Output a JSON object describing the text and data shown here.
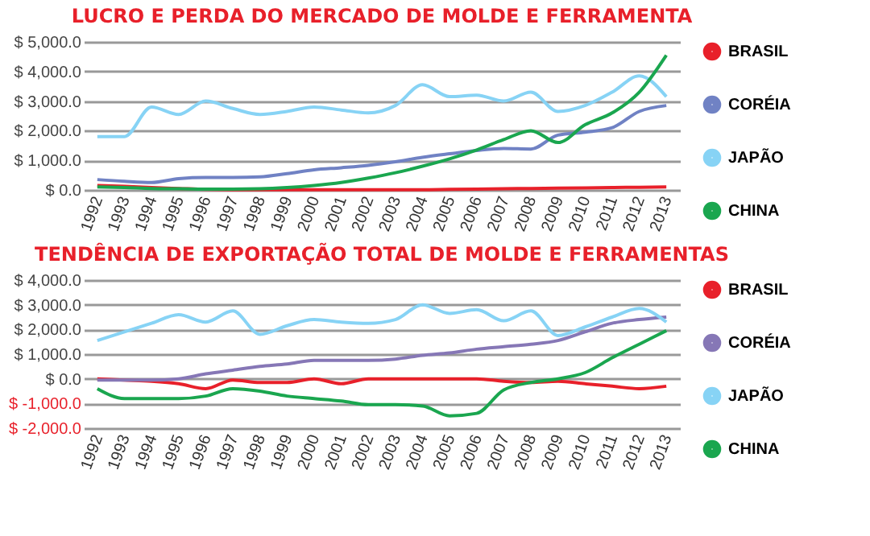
{
  "chart_data": [
    {
      "type": "line",
      "title": "LUCRO E PERDA DO MERCADO DE MOLDE E FERRAMENTA",
      "categories": [
        "1992",
        "1993",
        "1994",
        "1995",
        "1996",
        "1997",
        "1998",
        "1999",
        "2000",
        "2001",
        "2002",
        "2003",
        "2004",
        "2005",
        "2006",
        "2007",
        "2008",
        "2009",
        "2010",
        "2011",
        "2012",
        "2013"
      ],
      "series": [
        {
          "name": "BRASIL",
          "color": "#e8202a",
          "values": [
            150,
            120,
            80,
            50,
            20,
            10,
            10,
            10,
            10,
            10,
            10,
            10,
            10,
            20,
            30,
            40,
            50,
            60,
            70,
            80,
            90,
            100
          ]
        },
        {
          "name": "CORÉIA",
          "color": "#7082c4",
          "values": [
            350,
            290,
            250,
            380,
            420,
            420,
            440,
            550,
            680,
            750,
            830,
            950,
            1100,
            1220,
            1330,
            1400,
            1380,
            1850,
            1950,
            2100,
            2650,
            2850
          ]
        },
        {
          "name": "JAPÃO",
          "color": "#87d3f5",
          "values": [
            1800,
            1800,
            2800,
            2550,
            3000,
            2750,
            2550,
            2650,
            2800,
            2700,
            2600,
            2850,
            3550,
            3150,
            3200,
            3000,
            3300,
            2650,
            2850,
            3300,
            3850,
            3150
          ]
        },
        {
          "name": "CHINA",
          "color": "#1aa64f",
          "values": [
            100,
            80,
            50,
            40,
            30,
            30,
            40,
            80,
            150,
            250,
            400,
            580,
            800,
            1050,
            1350,
            1700,
            2000,
            1600,
            2200,
            2600,
            3300,
            4550
          ]
        }
      ],
      "ylim": [
        0,
        5000
      ],
      "yticks": [
        {
          "value": 0,
          "label": "$ 0.0"
        },
        {
          "value": 1000,
          "label": "$ 1,000.0"
        },
        {
          "value": 2000,
          "label": "$ 2,000.0"
        },
        {
          "value": 3000,
          "label": "$ 3,000.0"
        },
        {
          "value": 4000,
          "label": "$ 4,000.0"
        },
        {
          "value": 5000,
          "label": "$ 5,000.0"
        }
      ],
      "grid": "y",
      "legend": "right",
      "marker": "none",
      "line_style": "solid"
    },
    {
      "type": "line",
      "title": "TENDÊNCIA DE EXPORTAÇÃO TOTAL DE MOLDE E FERRAMENTAS",
      "categories": [
        "1992",
        "1993",
        "1994",
        "1995",
        "1996",
        "1997",
        "1998",
        "1999",
        "2000",
        "2001",
        "2002",
        "2003",
        "2004",
        "2005",
        "2006",
        "2007",
        "2008",
        "2009",
        "2010",
        "2011",
        "2012",
        "2013"
      ],
      "series": [
        {
          "name": "BRASIL",
          "color": "#e8202a",
          "values": [
            0,
            -50,
            -100,
            -200,
            -400,
            -50,
            -150,
            -150,
            0,
            -200,
            0,
            0,
            0,
            0,
            0,
            -100,
            -150,
            -100,
            -200,
            -300,
            -400,
            -300
          ]
        },
        {
          "name": "CORÉIA",
          "color": "#8677b6",
          "values": [
            -50,
            -50,
            -50,
            0,
            200,
            350,
            500,
            600,
            750,
            750,
            750,
            800,
            950,
            1050,
            1200,
            1300,
            1400,
            1550,
            1900,
            2250,
            2400,
            2500
          ]
        },
        {
          "name": "JAPÃO",
          "color": "#87d3f5",
          "values": [
            1550,
            1900,
            2250,
            2600,
            2300,
            2750,
            1800,
            2150,
            2400,
            2300,
            2250,
            2400,
            3000,
            2650,
            2800,
            2350,
            2750,
            1750,
            2100,
            2500,
            2850,
            2300
          ]
        },
        {
          "name": "CHINA",
          "color": "#1aa64f",
          "values": [
            -400,
            -800,
            -800,
            -800,
            -700,
            -400,
            -500,
            -700,
            -800,
            -900,
            -1050,
            -1050,
            -1100,
            -1500,
            -1400,
            -450,
            -150,
            0,
            250,
            850,
            1400,
            1950
          ]
        }
      ],
      "ylim": [
        -2000,
        4000
      ],
      "yticks": [
        {
          "value": -2000,
          "label": "$ -2,000.0"
        },
        {
          "value": -1000,
          "label": "$ -1,000.0"
        },
        {
          "value": 0,
          "label": "$ 0.0"
        },
        {
          "value": 1000,
          "label": "$ 1,000.0"
        },
        {
          "value": 2000,
          "label": "$ 2,000.0"
        },
        {
          "value": 3000,
          "label": "$ 3,000.0"
        },
        {
          "value": 4000,
          "label": "$ 4,000.0"
        }
      ],
      "grid": "y",
      "legend": "right",
      "marker": "none",
      "line_style": "solid"
    }
  ]
}
